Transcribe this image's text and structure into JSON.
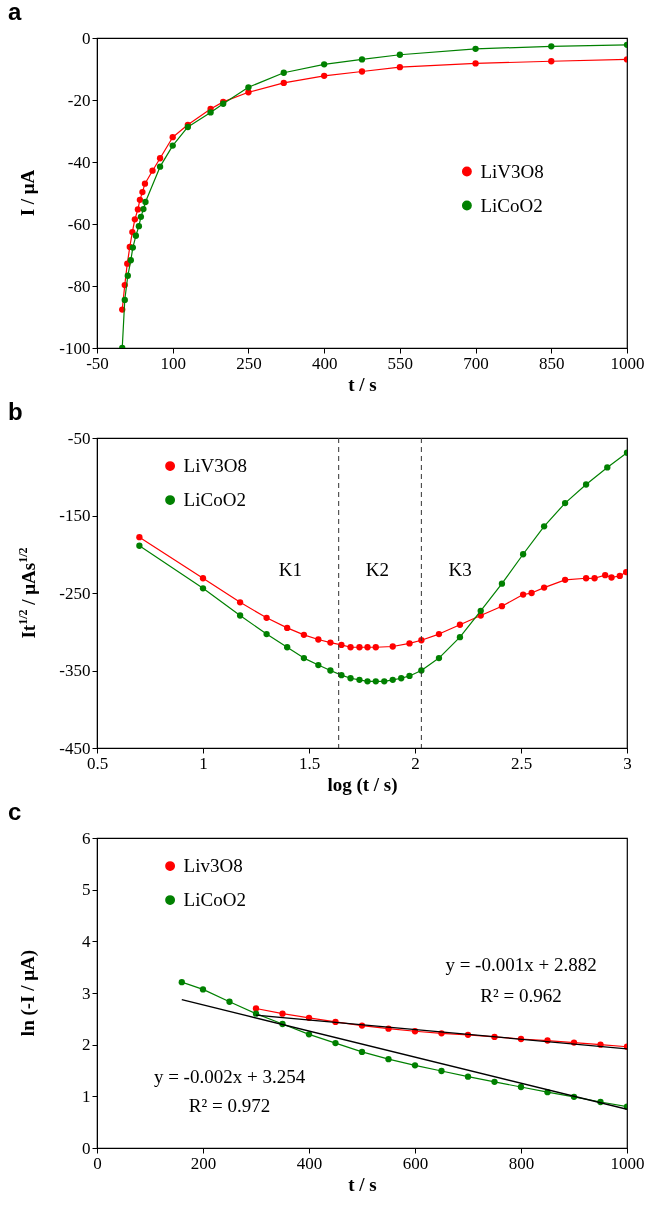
{
  "chart_data": [
    {
      "type": "line",
      "title": "a",
      "xlabel": "t / s",
      "ylabel": "I / μA",
      "xlim": [
        -50,
        1000
      ],
      "xticks": [
        -50,
        100,
        250,
        400,
        550,
        700,
        850,
        1000
      ],
      "ylim": [
        -100,
        0
      ],
      "yticks": [
        -100,
        -80,
        -60,
        -40,
        -20,
        0
      ],
      "grid": false,
      "legend": "right",
      "marker": "circle",
      "line_style": "solid",
      "series": [
        {
          "name": "LiV3O8",
          "color": "#ff0000",
          "x": [
            0,
            5,
            10,
            15,
            20,
            25,
            31,
            35,
            40,
            45,
            60,
            75,
            100,
            130,
            175,
            200,
            250,
            320,
            400,
            475,
            550,
            700,
            850,
            1000
          ],
          "values": [
            -87.6,
            -79.7,
            -72.8,
            -67.4,
            -62.6,
            -58.5,
            -55.3,
            -52.2,
            -49.7,
            -47,
            -42.8,
            -38.8,
            -32,
            -28,
            -22.9,
            -20.6,
            -17.5,
            -14.5,
            -12.2,
            -10.8,
            -9.4,
            -8.2,
            -7.5,
            -6.9
          ]
        },
        {
          "name": "LiCoO2",
          "color": "#008000",
          "x": [
            0,
            5,
            11,
            17,
            21,
            27,
            33,
            37,
            42,
            46,
            75,
            100,
            130,
            175,
            200,
            250,
            320,
            400,
            475,
            550,
            700,
            850,
            1000
          ],
          "values": [
            -100,
            -84.5,
            -76.7,
            -71.7,
            -67.6,
            -63.8,
            -60.7,
            -57.7,
            -55.2,
            -52.9,
            -41.5,
            -34.7,
            -28.7,
            -24,
            -21.2,
            -15.9,
            -11.2,
            -8.5,
            -6.9,
            -5.4,
            -3.5,
            -2.7,
            -2.2
          ]
        }
      ]
    },
    {
      "type": "line",
      "title": "b",
      "xlabel": "log (t / s)",
      "ylabel": "It$^{1/2}$ / μAs$^{1/2}$",
      "xlim": [
        0.5,
        3
      ],
      "xticks": [
        0.5,
        1,
        1.5,
        2,
        2.5,
        3
      ],
      "ylim": [
        -450,
        -50
      ],
      "yticks": [
        -450,
        -350,
        -250,
        -150,
        -50
      ],
      "grid": false,
      "legend": "top left",
      "marker": "circle",
      "line_style": "solid",
      "ref_lines": [
        {
          "axis": "x",
          "value": 1.64,
          "line_style": "dashed",
          "color": "#333333"
        },
        {
          "axis": "x",
          "value": 2.03,
          "line_style": "dashed",
          "color": "#333333"
        }
      ],
      "annotations": [
        "K1",
        "K2",
        "K3"
      ],
      "series": [
        {
          "name": "LiV3O8",
          "color": "#ff0000",
          "x": [
            0.7,
            1.0,
            1.175,
            1.3,
            1.397,
            1.476,
            1.544,
            1.601,
            1.653,
            1.696,
            1.738,
            1.776,
            1.815,
            1.895,
            1.974,
            2.03,
            2.113,
            2.212,
            2.31,
            2.41,
            2.51,
            2.55,
            2.609,
            2.708,
            2.807,
            2.847,
            2.897,
            2.927,
            2.966,
            2.996
          ],
          "values": [
            -178,
            -231,
            -262,
            -282,
            -295,
            -304,
            -310,
            -314,
            -317,
            -320,
            -320,
            -320,
            -320,
            -319,
            -315,
            -311,
            -303,
            -291,
            -279,
            -267,
            -252,
            -250,
            -243,
            -233,
            -231,
            -231,
            -227,
            -230,
            -228,
            -223
          ]
        },
        {
          "name": "LiCoO2",
          "color": "#008000",
          "x": [
            0.7,
            1.0,
            1.175,
            1.3,
            1.397,
            1.476,
            1.544,
            1.601,
            1.653,
            1.696,
            1.738,
            1.776,
            1.815,
            1.855,
            1.895,
            1.935,
            1.974,
            2.03,
            2.113,
            2.212,
            2.31,
            2.41,
            2.51,
            2.609,
            2.708,
            2.807,
            2.907,
            3.0
          ],
          "values": [
            -189,
            -244,
            -279,
            -303,
            -320,
            -334,
            -343,
            -350,
            -356,
            -360,
            -362,
            -364,
            -364,
            -364,
            -362,
            -360,
            -357,
            -350,
            -334,
            -307,
            -273,
            -238,
            -200,
            -164,
            -134,
            -110,
            -88,
            -69
          ]
        }
      ]
    },
    {
      "type": "line",
      "title": "c",
      "xlabel": "t / s",
      "ylabel": "ln (-I / μA)",
      "xlim": [
        0,
        1000
      ],
      "xticks": [
        0,
        200,
        400,
        600,
        800,
        1000
      ],
      "ylim": [
        0,
        6
      ],
      "yticks": [
        0,
        1,
        2,
        3,
        4,
        5,
        6
      ],
      "grid": false,
      "legend": "top left",
      "marker": "circle",
      "line_style": "solid",
      "annotations": [
        "y = -0.001x + 2.882",
        "R² = 0.962",
        "y = -0.002x + 3.254",
        "R² = 0.972"
      ],
      "series": [
        {
          "name": "Liv3O8",
          "color": "#ff0000",
          "x": [
            300,
            350,
            400,
            450,
            500,
            550,
            600,
            650,
            700,
            750,
            800,
            850,
            900,
            950,
            1000
          ],
          "values": [
            2.7,
            2.6,
            2.52,
            2.44,
            2.37,
            2.31,
            2.26,
            2.22,
            2.19,
            2.15,
            2.11,
            2.08,
            2.04,
            2,
            1.96
          ]
        },
        {
          "name": "LiCoO2",
          "color": "#008000",
          "x": [
            160,
            200,
            250,
            300,
            350,
            400,
            450,
            500,
            550,
            600,
            650,
            700,
            750,
            800,
            850,
            900,
            950,
            1000
          ],
          "values": [
            3.21,
            3.07,
            2.83,
            2.6,
            2.4,
            2.2,
            2.03,
            1.86,
            1.72,
            1.6,
            1.49,
            1.38,
            1.28,
            1.18,
            1.08,
            0.99,
            0.89,
            0.8
          ]
        },
        {
          "color": "#000000",
          "type": "line",
          "marker": "none",
          "x": [
            300,
            1000
          ],
          "values": [
            2.57,
            1.92
          ]
        },
        {
          "color": "#000000",
          "type": "line",
          "marker": "none",
          "x": [
            160,
            1000
          ],
          "values": [
            2.87,
            0.75
          ]
        }
      ]
    }
  ]
}
